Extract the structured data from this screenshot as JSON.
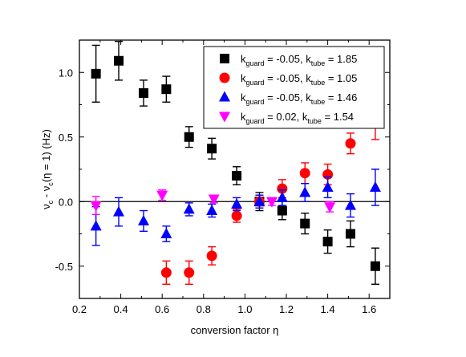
{
  "chart_data": {
    "type": "scatter",
    "title": "",
    "xlabel": "conversion factor η",
    "ylabel_parts": [
      "ν",
      "c",
      " - ν",
      "c",
      "(η = 1) (Hz)"
    ],
    "xlim": [
      0.2,
      1.7
    ],
    "ylim": [
      -0.75,
      1.25
    ],
    "xticks": [
      0.2,
      0.4,
      0.6,
      0.8,
      1.0,
      1.2,
      1.4,
      1.6
    ],
    "xtick_labels": [
      "0.2",
      "0.4",
      "0.6",
      "0.8",
      "1.0",
      "1.2",
      "1.4",
      "1.6"
    ],
    "yticks": [
      -0.5,
      0.0,
      0.5,
      1.0
    ],
    "ytick_labels": [
      "-0.5",
      "0.0",
      "0.5",
      "1.0"
    ],
    "zero_line": true,
    "grid": false,
    "legend_placement": "top-right",
    "series": [
      {
        "legend_parts": [
          "k",
          "guard",
          " = -0.05, k",
          "tube",
          " = 1.85"
        ],
        "marker": "square",
        "color": "#000000",
        "points": [
          {
            "x": 0.28,
            "y": 0.99,
            "err": 0.22
          },
          {
            "x": 0.39,
            "y": 1.09,
            "err": 0.15
          },
          {
            "x": 0.51,
            "y": 0.84,
            "err": 0.1
          },
          {
            "x": 0.62,
            "y": 0.87,
            "err": 0.1
          },
          {
            "x": 0.73,
            "y": 0.5,
            "err": 0.08
          },
          {
            "x": 0.84,
            "y": 0.41,
            "err": 0.08
          },
          {
            "x": 0.96,
            "y": 0.2,
            "err": 0.07
          },
          {
            "x": 1.07,
            "y": 0.0,
            "err": 0.07
          },
          {
            "x": 1.18,
            "y": -0.07,
            "err": 0.07
          },
          {
            "x": 1.29,
            "y": -0.17,
            "err": 0.08
          },
          {
            "x": 1.4,
            "y": -0.31,
            "err": 0.09
          },
          {
            "x": 1.51,
            "y": -0.25,
            "err": 0.1
          },
          {
            "x": 1.63,
            "y": -0.5,
            "err": 0.14
          }
        ]
      },
      {
        "legend_parts": [
          "k",
          "guard",
          " = -0.05, k",
          "tube",
          " = 1.05"
        ],
        "marker": "circle",
        "color": "#ff0000",
        "points": [
          {
            "x": 0.62,
            "y": -0.55,
            "err": 0.09
          },
          {
            "x": 0.73,
            "y": -0.55,
            "err": 0.09
          },
          {
            "x": 0.84,
            "y": -0.42,
            "err": 0.07
          },
          {
            "x": 0.96,
            "y": -0.11,
            "err": 0.05
          },
          {
            "x": 1.07,
            "y": 0.0,
            "err": 0.05
          },
          {
            "x": 1.18,
            "y": 0.1,
            "err": 0.07
          },
          {
            "x": 1.29,
            "y": 0.22,
            "err": 0.08
          },
          {
            "x": 1.4,
            "y": 0.21,
            "err": 0.08
          },
          {
            "x": 1.51,
            "y": 0.45,
            "err": 0.08
          },
          {
            "x": 1.63,
            "y": 0.64,
            "err": 0.16
          }
        ]
      },
      {
        "legend_parts": [
          "k",
          "guard",
          " = -0.05, k",
          "tube",
          " = 1.46"
        ],
        "marker": "triangle-up",
        "color": "#0000ff",
        "points": [
          {
            "x": 0.28,
            "y": -0.19,
            "err": 0.15
          },
          {
            "x": 0.39,
            "y": -0.08,
            "err": 0.11
          },
          {
            "x": 0.51,
            "y": -0.15,
            "err": 0.08
          },
          {
            "x": 0.62,
            "y": -0.25,
            "err": 0.06
          },
          {
            "x": 0.73,
            "y": -0.06,
            "err": 0.05
          },
          {
            "x": 0.84,
            "y": -0.07,
            "err": 0.05
          },
          {
            "x": 0.96,
            "y": -0.02,
            "err": 0.05
          },
          {
            "x": 1.07,
            "y": 0.0,
            "err": 0.05
          },
          {
            "x": 1.18,
            "y": 0.03,
            "err": 0.06
          },
          {
            "x": 1.29,
            "y": 0.07,
            "err": 0.07
          },
          {
            "x": 1.4,
            "y": 0.11,
            "err": 0.08
          },
          {
            "x": 1.51,
            "y": -0.03,
            "err": 0.09
          },
          {
            "x": 1.63,
            "y": 0.11,
            "err": 0.14
          }
        ]
      },
      {
        "legend_parts": [
          "k",
          "guard",
          " = 0.02, k",
          "tube",
          " = 1.54"
        ],
        "marker": "triangle-down",
        "color": "#ff00ff",
        "points": [
          {
            "x": 0.28,
            "y": -0.03,
            "err": 0.07
          },
          {
            "x": 0.6,
            "y": 0.05,
            "err": 0.04
          },
          {
            "x": 0.85,
            "y": 0.02,
            "err": 0.03
          },
          {
            "x": 1.13,
            "y": 0.0,
            "err": 0.03
          },
          {
            "x": 1.41,
            "y": -0.04,
            "err": 0.04
          }
        ]
      }
    ]
  }
}
